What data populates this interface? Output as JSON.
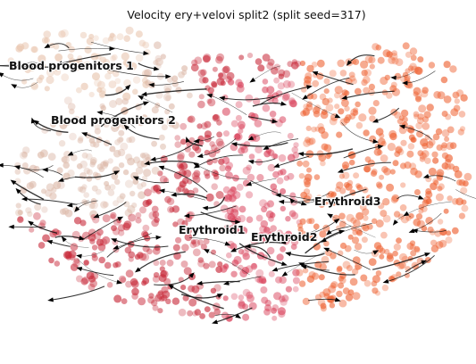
{
  "figure": {
    "title": "Velocity ery+velovi split2 (split seed=317)"
  },
  "clusters": [
    {
      "name": "Blood progenitors 1",
      "color": "#e8c4ad"
    },
    {
      "name": "Blood progenitors 2",
      "color": "#dcb8a8"
    },
    {
      "name": "Erythroid1",
      "color": "#c82a3a"
    },
    {
      "name": "Erythroid2",
      "color": "#d9415a"
    },
    {
      "name": "Erythroid3",
      "color": "#ee6030"
    }
  ],
  "layers": {
    "points": "cell-points",
    "streamlines": "velocity-streamlines"
  }
}
